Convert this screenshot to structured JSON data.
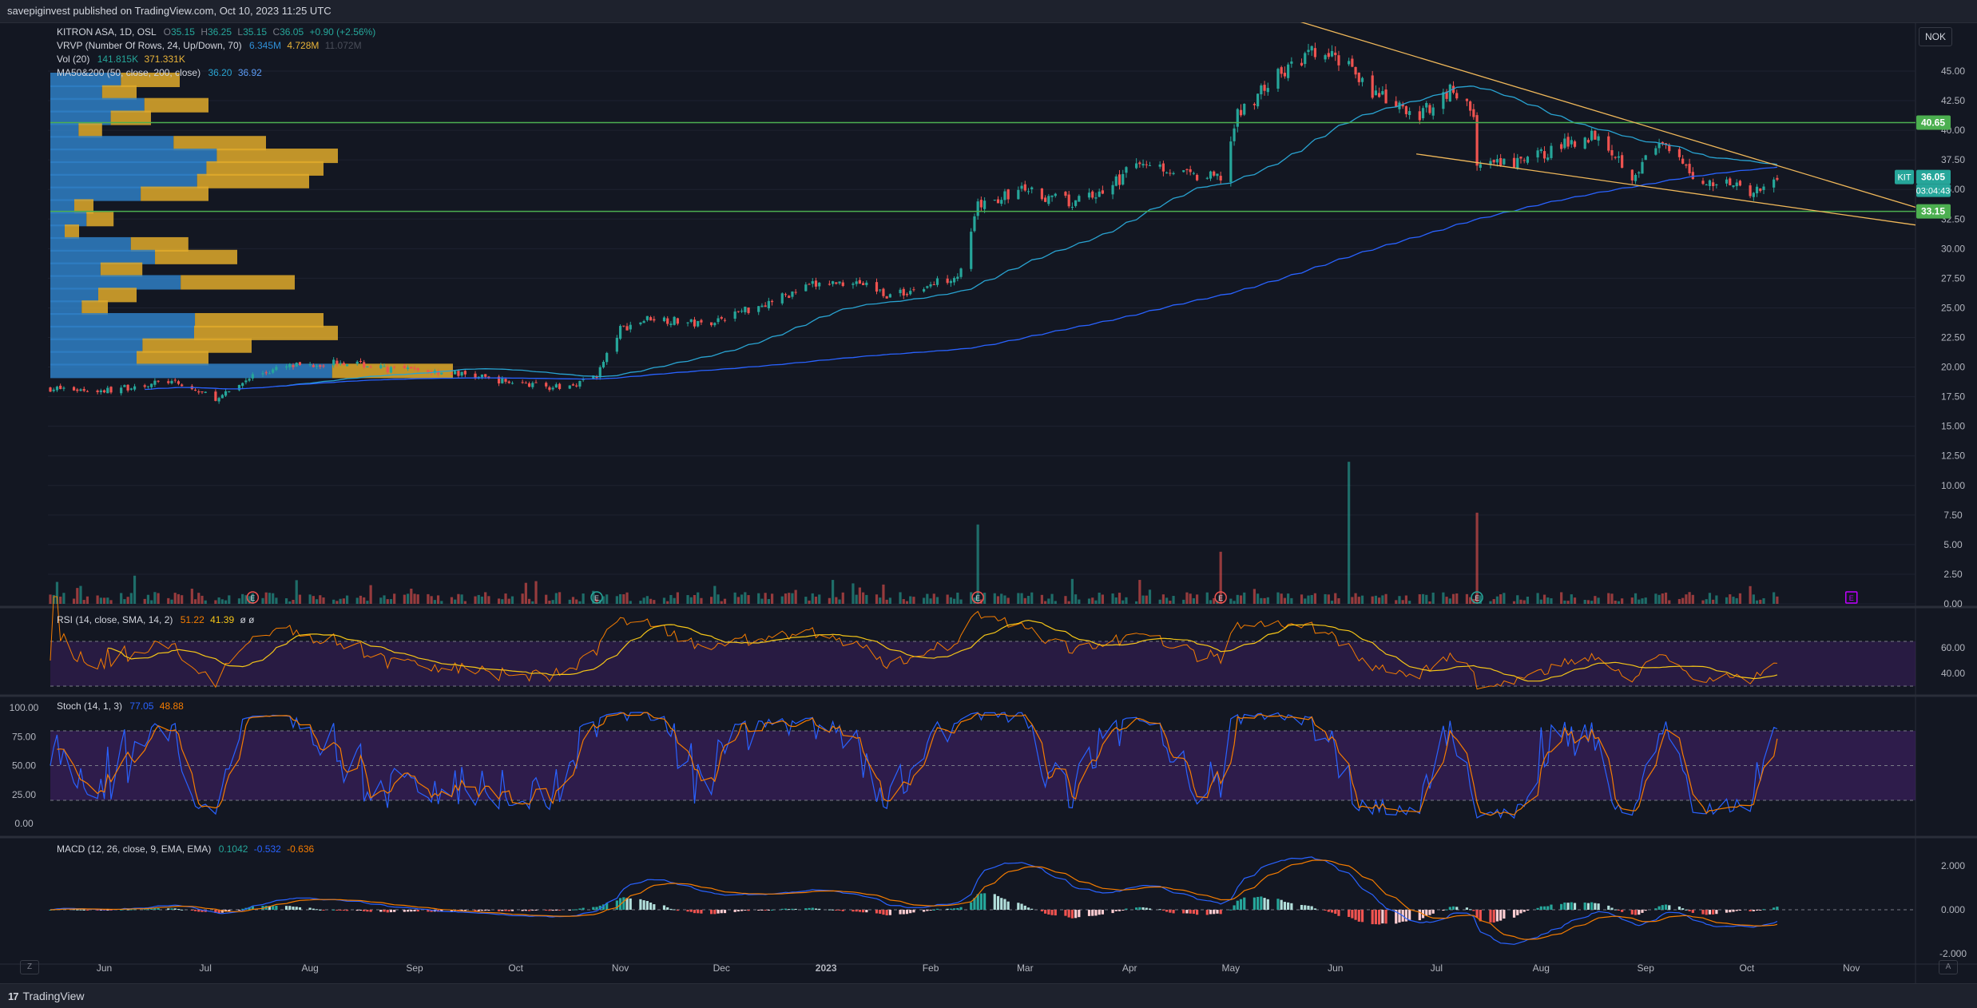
{
  "header": {
    "publish_text": "savepiginvest published on TradingView.com, Oct 10, 2023 11:25 UTC"
  },
  "footer": {
    "brand": "TradingView",
    "logo": "17"
  },
  "corner": {
    "left": "Z",
    "right": "A"
  },
  "currency": "NOK",
  "colors": {
    "up": "#26a69a",
    "down": "#ef5350",
    "ma50": "#29a3d1",
    "ma200": "#2962ff",
    "trend": "#f0b85a",
    "level": "#4caf50",
    "rsi": "#f57c00",
    "rsi_sma": "#f5c518",
    "stoch_k": "#2962ff",
    "stoch_d": "#f57c00",
    "band": "#3a1f5d",
    "vol_ma": "#d4a237"
  },
  "legend": {
    "symbol": "KITRON ASA, 1D, OSL",
    "o_lbl": "O",
    "o": "35.15",
    "h_lbl": "H",
    "h": "36.25",
    "l_lbl": "L",
    "l": "35.15",
    "c_lbl": "C",
    "c": "36.05",
    "chg": "+0.90 (+2.56%)",
    "vrvp": "VRVP (Number Of Rows, 24, Up/Down, 70)",
    "vrvp_up": "6.345M",
    "vrvp_dn": "4.728M",
    "vrvp_total": "11.072M",
    "vol": "Vol (20)",
    "vol_v": "141.815K",
    "vol_ma": "371.331K",
    "ma": "MA50&200 (50, close, 200, close)",
    "ma50": "36.20",
    "ma200": "36.92",
    "rsi": "RSI (14, close, SMA, 14, 2)",
    "rsi_v": "51.22",
    "rsi_ma": "41.39",
    "rsi_extra": "ø  ø",
    "stoch": "Stoch (14, 1, 3)",
    "stoch_k": "77.05",
    "stoch_d": "48.88",
    "macd": "MACD (12, 26, close, 9, EMA, EMA)",
    "macd_h": "0.1042",
    "macd_m": "-0.532",
    "macd_s": "-0.636"
  },
  "chart_data": {
    "type": "candlestick",
    "symbol": "KITRON ASA",
    "interval": "1D",
    "currency": "NOK",
    "price_ticks": [
      "45.00",
      "42.50",
      "40.00",
      "37.50",
      "35.00",
      "32.50",
      "30.00",
      "27.50",
      "25.00",
      "22.50",
      "20.00",
      "17.50",
      "15.00",
      "12.50",
      "10.00",
      "7.50",
      "5.00",
      "2.50",
      "0.00"
    ],
    "rsi_ticks": [
      "60.00",
      "40.00"
    ],
    "stoch_ticks": [
      "100.00",
      "75.00",
      "50.00",
      "25.00",
      "0.00"
    ],
    "macd_ticks": [
      "2.000",
      "0.000",
      "-2.000"
    ],
    "x_labels": [
      "Jun",
      "Jul",
      "Aug",
      "Sep",
      "Oct",
      "Nov",
      "Dec",
      "2023",
      "Feb",
      "Mar",
      "Apr",
      "May",
      "Jun",
      "Jul",
      "Aug",
      "Sep",
      "Oct",
      "Nov"
    ],
    "price_path": [
      {
        "d": "2022-05-16",
        "p": 18.2
      },
      {
        "d": "2022-06-01",
        "p": 18.0
      },
      {
        "d": "2022-06-20",
        "p": 18.8
      },
      {
        "d": "2022-07-05",
        "p": 17.3
      },
      {
        "d": "2022-07-15",
        "p": 19.3
      },
      {
        "d": "2022-07-25",
        "p": 20.0
      },
      {
        "d": "2022-08-10",
        "p": 20.5
      },
      {
        "d": "2022-08-25",
        "p": 19.8
      },
      {
        "d": "2022-09-10",
        "p": 19.6
      },
      {
        "d": "2022-09-28",
        "p": 18.8
      },
      {
        "d": "2022-10-15",
        "p": 18.2
      },
      {
        "d": "2022-10-25",
        "p": 19.3
      },
      {
        "d": "2022-11-01",
        "p": 23.2
      },
      {
        "d": "2022-11-10",
        "p": 24.2
      },
      {
        "d": "2022-11-25",
        "p": 23.6
      },
      {
        "d": "2022-12-15",
        "p": 25.5
      },
      {
        "d": "2022-12-28",
        "p": 26.9
      },
      {
        "d": "2023-01-10",
        "p": 27.3
      },
      {
        "d": "2023-01-20",
        "p": 26.0
      },
      {
        "d": "2023-01-31",
        "p": 26.8
      },
      {
        "d": "2023-02-10",
        "p": 28.0
      },
      {
        "d": "2023-02-15",
        "p": 33.5
      },
      {
        "d": "2023-02-28",
        "p": 35.0
      },
      {
        "d": "2023-03-15",
        "p": 33.8
      },
      {
        "d": "2023-03-25",
        "p": 35.0
      },
      {
        "d": "2023-04-05",
        "p": 37.5
      },
      {
        "d": "2023-04-20",
        "p": 36.0
      },
      {
        "d": "2023-04-28",
        "p": 36.0
      },
      {
        "d": "2023-05-03",
        "p": 41.2
      },
      {
        "d": "2023-05-12",
        "p": 44.0
      },
      {
        "d": "2023-05-25",
        "p": 46.5
      },
      {
        "d": "2023-06-05",
        "p": 45.8
      },
      {
        "d": "2023-06-12",
        "p": 43.2
      },
      {
        "d": "2023-06-25",
        "p": 41.0
      },
      {
        "d": "2023-07-05",
        "p": 43.5
      },
      {
        "d": "2023-07-12",
        "p": 41.5
      },
      {
        "d": "2023-07-13",
        "p": 37.0
      },
      {
        "d": "2023-07-25",
        "p": 37.2
      },
      {
        "d": "2023-08-10",
        "p": 39.0
      },
      {
        "d": "2023-08-18",
        "p": 39.8
      },
      {
        "d": "2023-08-28",
        "p": 36.2
      },
      {
        "d": "2023-09-05",
        "p": 38.8
      },
      {
        "d": "2023-09-18",
        "p": 35.5
      },
      {
        "d": "2023-09-28",
        "p": 35.8
      },
      {
        "d": "2023-10-02",
        "p": 34.3
      },
      {
        "d": "2023-10-10",
        "p": 36.05
      }
    ],
    "ma50_last": 36.2,
    "ma200_last": 36.92,
    "price_labels": [
      {
        "text": "40.65",
        "value": 40.65,
        "color": "#4caf50"
      },
      {
        "text": "33.15",
        "value": 33.15,
        "color": "#4caf50"
      },
      {
        "text": "36.05",
        "value": 36.05,
        "color": "#26a69a"
      }
    ],
    "countdown": "03:04:43",
    "last_price_tag": "KIT",
    "horizontal_levels": [
      40.65,
      33.15
    ],
    "event_markers": [
      {
        "d": "2022-07-15",
        "t": "E"
      },
      {
        "d": "2022-10-25",
        "t": "E"
      },
      {
        "d": "2023-02-15",
        "t": "E"
      },
      {
        "d": "2023-04-28",
        "t": "E"
      },
      {
        "d": "2023-07-13",
        "t": "E"
      },
      {
        "d": "2023-11-01",
        "t": "E"
      }
    ],
    "volume_spikes": [
      {
        "d": "2023-06-05",
        "v": 12.0
      },
      {
        "d": "2023-07-13",
        "v": 7.7
      },
      {
        "d": "2023-02-15",
        "v": 6.7
      },
      {
        "d": "2023-04-28",
        "v": 4.4
      }
    ]
  }
}
